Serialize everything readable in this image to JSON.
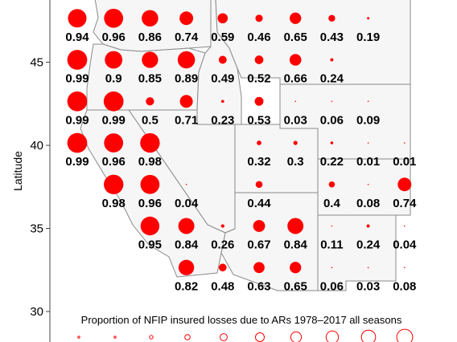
{
  "chart_data": {
    "type": "bubble-map",
    "title": "",
    "ylabel": "Latitude",
    "y_ticks": [
      30,
      35,
      40,
      45
    ],
    "ylim": [
      29.5,
      48.5
    ],
    "xlim": [
      -125,
      -102
    ],
    "legend_title": "Proportion of NFIP insured losses due to ARs 1978–2017 all seasons",
    "legend_values": [
      0.0,
      0.1,
      0.2,
      0.3,
      0.4,
      0.5,
      0.6,
      0.7,
      0.8,
      0.9
    ],
    "marker_color": "#ff0000",
    "points": [
      {
        "lon": -124.0,
        "lat": 47.5,
        "value": 0.94,
        "label": "0.94"
      },
      {
        "lon": -122.0,
        "lat": 47.5,
        "value": 0.96,
        "label": "0.96"
      },
      {
        "lon": -120.0,
        "lat": 47.5,
        "value": 0.86,
        "label": "0.86"
      },
      {
        "lon": -118.0,
        "lat": 47.5,
        "value": 0.74,
        "label": "0.74"
      },
      {
        "lon": -116.0,
        "lat": 47.5,
        "value": 0.59,
        "label": "0.59"
      },
      {
        "lon": -114.0,
        "lat": 47.5,
        "value": 0.46,
        "label": "0.46"
      },
      {
        "lon": -112.0,
        "lat": 47.5,
        "value": 0.65,
        "label": "0.65"
      },
      {
        "lon": -110.0,
        "lat": 47.5,
        "value": 0.43,
        "label": "0.43"
      },
      {
        "lon": -108.0,
        "lat": 47.5,
        "value": 0.19,
        "label": "0.19"
      },
      {
        "lon": -124.0,
        "lat": 45.0,
        "value": 0.99,
        "label": "0.99"
      },
      {
        "lon": -122.0,
        "lat": 45.0,
        "value": 0.9,
        "label": "0.9"
      },
      {
        "lon": -120.0,
        "lat": 45.0,
        "value": 0.85,
        "label": "0.85"
      },
      {
        "lon": -118.0,
        "lat": 45.0,
        "value": 0.89,
        "label": "0.89"
      },
      {
        "lon": -116.0,
        "lat": 45.0,
        "value": 0.49,
        "label": "0.49"
      },
      {
        "lon": -114.0,
        "lat": 45.0,
        "value": 0.52,
        "label": "0.52"
      },
      {
        "lon": -112.0,
        "lat": 45.0,
        "value": 0.66,
        "label": "0.66"
      },
      {
        "lon": -110.0,
        "lat": 45.0,
        "value": 0.24,
        "label": "0.24"
      },
      {
        "lon": -124.0,
        "lat": 42.5,
        "value": 0.99,
        "label": "0.99"
      },
      {
        "lon": -122.0,
        "lat": 42.5,
        "value": 0.99,
        "label": "0.99"
      },
      {
        "lon": -120.0,
        "lat": 42.5,
        "value": 0.5,
        "label": "0.5"
      },
      {
        "lon": -118.0,
        "lat": 42.5,
        "value": 0.71,
        "label": "0.71"
      },
      {
        "lon": -116.0,
        "lat": 42.5,
        "value": 0.23,
        "label": "0.23"
      },
      {
        "lon": -114.0,
        "lat": 42.5,
        "value": 0.53,
        "label": "0.53"
      },
      {
        "lon": -112.0,
        "lat": 42.5,
        "value": 0.03,
        "label": "0.03"
      },
      {
        "lon": -110.0,
        "lat": 42.5,
        "value": 0.06,
        "label": "0.06"
      },
      {
        "lon": -108.0,
        "lat": 42.5,
        "value": 0.09,
        "label": "0.09"
      },
      {
        "lon": -124.0,
        "lat": 40.0,
        "value": 0.99,
        "label": "0.99"
      },
      {
        "lon": -122.0,
        "lat": 40.0,
        "value": 0.96,
        "label": "0.96"
      },
      {
        "lon": -120.0,
        "lat": 40.0,
        "value": 0.98,
        "label": "0.98"
      },
      {
        "lon": -114.0,
        "lat": 40.0,
        "value": 0.32,
        "label": "0.32"
      },
      {
        "lon": -112.0,
        "lat": 40.0,
        "value": 0.3,
        "label": "0.3"
      },
      {
        "lon": -110.0,
        "lat": 40.0,
        "value": 0.22,
        "label": "0.22"
      },
      {
        "lon": -108.0,
        "lat": 40.0,
        "value": 0.01,
        "label": "0.01"
      },
      {
        "lon": -106.0,
        "lat": 40.0,
        "value": 0.01,
        "label": "0.01"
      },
      {
        "lon": -122.0,
        "lat": 37.5,
        "value": 0.98,
        "label": "0.98"
      },
      {
        "lon": -120.0,
        "lat": 37.5,
        "value": 0.96,
        "label": "0.96"
      },
      {
        "lon": -118.0,
        "lat": 37.5,
        "value": 0.04,
        "label": "0.04"
      },
      {
        "lon": -114.0,
        "lat": 37.5,
        "value": 0.44,
        "label": "0.44"
      },
      {
        "lon": -110.0,
        "lat": 37.5,
        "value": 0.4,
        "label": "0.4"
      },
      {
        "lon": -108.0,
        "lat": 37.5,
        "value": 0.08,
        "label": "0.08"
      },
      {
        "lon": -106.0,
        "lat": 37.5,
        "value": 0.74,
        "label": "0.74"
      },
      {
        "lon": -120.0,
        "lat": 35.0,
        "value": 0.95,
        "label": "0.95"
      },
      {
        "lon": -118.0,
        "lat": 35.0,
        "value": 0.84,
        "label": "0.84"
      },
      {
        "lon": -116.0,
        "lat": 35.0,
        "value": 0.26,
        "label": "0.26"
      },
      {
        "lon": -114.0,
        "lat": 35.0,
        "value": 0.67,
        "label": "0.67"
      },
      {
        "lon": -112.0,
        "lat": 35.0,
        "value": 0.84,
        "label": "0.84"
      },
      {
        "lon": -110.0,
        "lat": 35.0,
        "value": 0.11,
        "label": "0.11"
      },
      {
        "lon": -108.0,
        "lat": 35.0,
        "value": 0.24,
        "label": "0.24"
      },
      {
        "lon": -106.0,
        "lat": 35.0,
        "value": 0.04,
        "label": "0.04"
      },
      {
        "lon": -118.0,
        "lat": 32.5,
        "value": 0.82,
        "label": "0.82"
      },
      {
        "lon": -116.0,
        "lat": 32.5,
        "value": 0.48,
        "label": "0.48"
      },
      {
        "lon": -114.0,
        "lat": 32.5,
        "value": 0.63,
        "label": "0.63"
      },
      {
        "lon": -112.0,
        "lat": 32.5,
        "value": 0.65,
        "label": "0.65"
      },
      {
        "lon": -110.0,
        "lat": 32.5,
        "value": 0.06,
        "label": "0.06"
      },
      {
        "lon": -108.0,
        "lat": 32.5,
        "value": 0.03,
        "label": "0.03"
      },
      {
        "lon": -106.0,
        "lat": 32.5,
        "value": 0.08,
        "label": "0.08"
      }
    ]
  }
}
